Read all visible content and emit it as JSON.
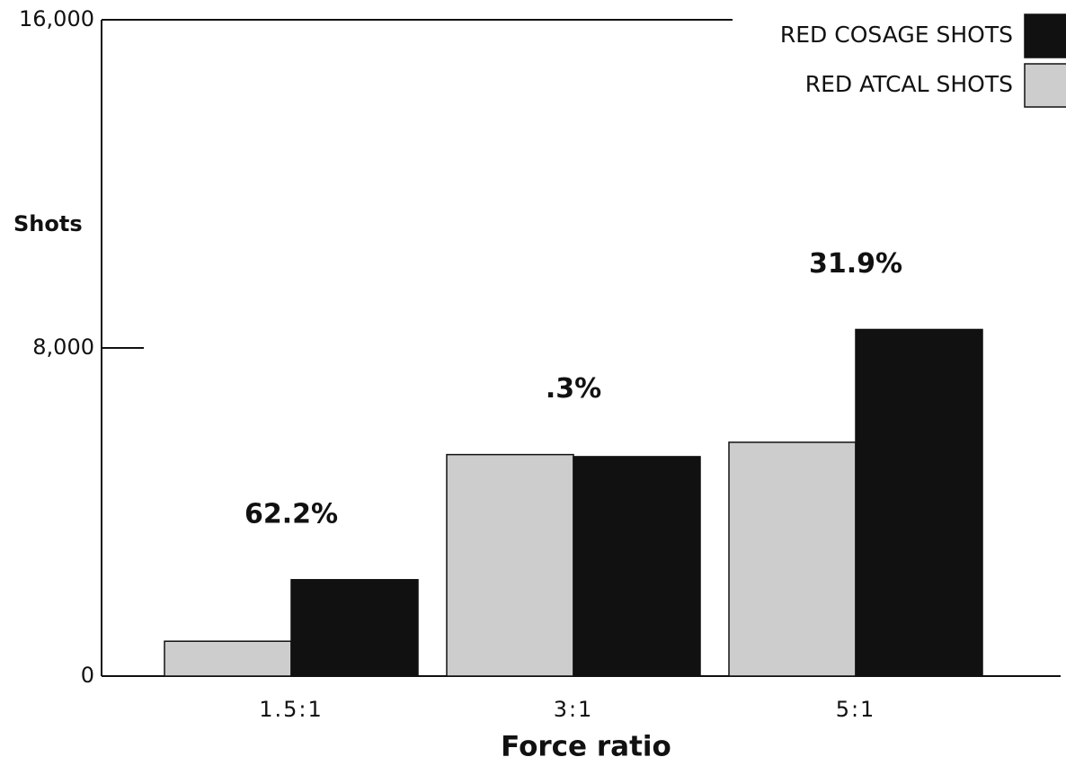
{
  "chart_data": {
    "type": "bar",
    "y_label": "Shots",
    "x_label": "Force ratio",
    "categories": [
      "1.5:1",
      "3:1",
      "5:1"
    ],
    "series": [
      {
        "name": "RED ATCAL SHOTS",
        "color": "#cdcdcd",
        "values": [
          850,
          5400,
          5700
        ]
      },
      {
        "name": "RED COSAGE SHOTS",
        "color": "#111111",
        "values": [
          2350,
          5350,
          8450
        ]
      }
    ],
    "annotations": [
      "62.2%",
      ".3%",
      "31.9%"
    ],
    "ylim": [
      0,
      16000
    ],
    "yticks": [
      0,
      {
        "value": 8000,
        "label": "8,000"
      },
      {
        "value": 16000,
        "label": "16,000"
      }
    ],
    "legend": "top-right"
  }
}
